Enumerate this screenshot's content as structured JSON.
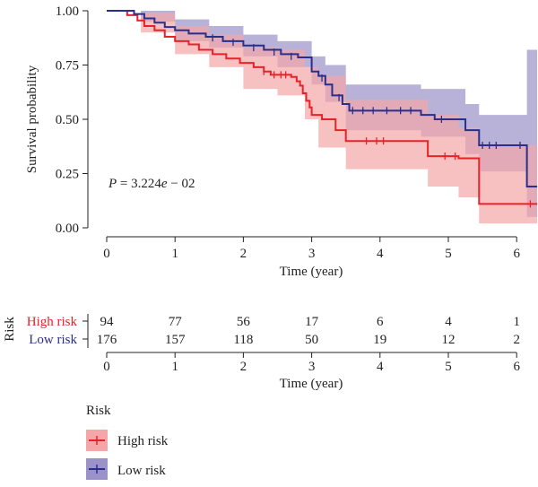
{
  "chart_data": [
    {
      "type": "line",
      "subtype": "kaplan-meier-survival",
      "xlabel": "Time (year)",
      "ylabel": "Survival probability",
      "xlim": [
        -0.1,
        6.3
      ],
      "ylim": [
        0,
        1
      ],
      "xticks": [
        "0",
        "1",
        "2",
        "3",
        "4",
        "5",
        "6"
      ],
      "yticks": [
        "0.00",
        "0.25",
        "0.50",
        "0.75",
        "1.00"
      ],
      "annotation": {
        "italic": "P",
        "rest": " = 3.224",
        "italic_e": "e",
        "tail": " − 02"
      },
      "grid": false,
      "confidence_bands": true,
      "series": [
        {
          "name": "High risk",
          "color": "#e8222a",
          "band_color": "#f4a6a8",
          "steps": [
            [
              0,
              1.0
            ],
            [
              0.3,
              0.98
            ],
            [
              0.45,
              0.955
            ],
            [
              0.55,
              0.93
            ],
            [
              0.7,
              0.91
            ],
            [
              0.85,
              0.88
            ],
            [
              1.0,
              0.86
            ],
            [
              1.2,
              0.845
            ],
            [
              1.35,
              0.82
            ],
            [
              1.55,
              0.8
            ],
            [
              1.75,
              0.78
            ],
            [
              1.95,
              0.76
            ],
            [
              2.15,
              0.74
            ],
            [
              2.3,
              0.72
            ],
            [
              2.4,
              0.705
            ],
            [
              2.7,
              0.695
            ],
            [
              2.78,
              0.675
            ],
            [
              2.83,
              0.655
            ],
            [
              2.87,
              0.62
            ],
            [
              2.92,
              0.585
            ],
            [
              2.97,
              0.555
            ],
            [
              3.0,
              0.52
            ],
            [
              3.15,
              0.5
            ],
            [
              3.35,
              0.45
            ],
            [
              3.5,
              0.4
            ],
            [
              4.7,
              0.33
            ],
            [
              5.15,
              0.32
            ],
            [
              5.45,
              0.11
            ],
            [
              6.3,
              0.11
            ]
          ],
          "lower": [
            [
              0,
              1.0
            ],
            [
              0.5,
              0.9
            ],
            [
              1.0,
              0.8
            ],
            [
              1.5,
              0.74
            ],
            [
              2.0,
              0.64
            ],
            [
              2.5,
              0.61
            ],
            [
              2.9,
              0.5
            ],
            [
              3.1,
              0.37
            ],
            [
              3.5,
              0.27
            ],
            [
              4.7,
              0.19
            ],
            [
              5.15,
              0.14
            ],
            [
              5.45,
              0.02
            ],
            [
              6.3,
              0.02
            ]
          ],
          "upper": [
            [
              0,
              1.0
            ],
            [
              0.5,
              0.99
            ],
            [
              1.0,
              0.93
            ],
            [
              1.5,
              0.89
            ],
            [
              2.0,
              0.83
            ],
            [
              2.5,
              0.82
            ],
            [
              2.9,
              0.74
            ],
            [
              3.1,
              0.7
            ],
            [
              3.5,
              0.59
            ],
            [
              4.7,
              0.52
            ],
            [
              5.15,
              0.46
            ],
            [
              5.45,
              0.38
            ],
            [
              6.3,
              0.38
            ]
          ],
          "censors": [
            [
              2.3,
              0.72
            ],
            [
              2.45,
              0.705
            ],
            [
              2.55,
              0.705
            ],
            [
              2.62,
              0.705
            ],
            [
              3.8,
              0.4
            ],
            [
              3.95,
              0.4
            ],
            [
              4.05,
              0.4
            ],
            [
              4.95,
              0.33
            ],
            [
              5.1,
              0.33
            ],
            [
              6.2,
              0.11
            ]
          ]
        },
        {
          "name": "Low risk",
          "color": "#2a2f8c",
          "band_color": "#9a92c9",
          "steps": [
            [
              0,
              1.0
            ],
            [
              0.4,
              0.985
            ],
            [
              0.55,
              0.965
            ],
            [
              0.7,
              0.945
            ],
            [
              0.85,
              0.925
            ],
            [
              1.0,
              0.91
            ],
            [
              1.2,
              0.895
            ],
            [
              1.45,
              0.88
            ],
            [
              1.7,
              0.86
            ],
            [
              2.0,
              0.84
            ],
            [
              2.3,
              0.82
            ],
            [
              2.55,
              0.8
            ],
            [
              2.8,
              0.785
            ],
            [
              3.0,
              0.72
            ],
            [
              3.1,
              0.7
            ],
            [
              3.2,
              0.66
            ],
            [
              3.3,
              0.61
            ],
            [
              3.45,
              0.57
            ],
            [
              3.55,
              0.54
            ],
            [
              4.6,
              0.52
            ],
            [
              4.8,
              0.5
            ],
            [
              5.25,
              0.45
            ],
            [
              5.45,
              0.38
            ],
            [
              6.0,
              0.38
            ],
            [
              6.15,
              0.19
            ],
            [
              6.3,
              0.19
            ]
          ],
          "lower": [
            [
              0,
              1.0
            ],
            [
              0.5,
              0.95
            ],
            [
              1.0,
              0.86
            ],
            [
              1.5,
              0.83
            ],
            [
              2.0,
              0.79
            ],
            [
              2.5,
              0.74
            ],
            [
              3.0,
              0.66
            ],
            [
              3.2,
              0.58
            ],
            [
              3.5,
              0.45
            ],
            [
              4.6,
              0.42
            ],
            [
              5.25,
              0.34
            ],
            [
              5.45,
              0.26
            ],
            [
              6.15,
              0.05
            ],
            [
              6.3,
              0.05
            ]
          ],
          "upper": [
            [
              0,
              1.0
            ],
            [
              0.5,
              1.0
            ],
            [
              1.0,
              0.96
            ],
            [
              1.5,
              0.93
            ],
            [
              2.0,
              0.89
            ],
            [
              2.5,
              0.86
            ],
            [
              3.0,
              0.79
            ],
            [
              3.2,
              0.75
            ],
            [
              3.5,
              0.66
            ],
            [
              4.6,
              0.64
            ],
            [
              5.25,
              0.57
            ],
            [
              5.45,
              0.52
            ],
            [
              6.15,
              0.52
            ],
            [
              6.15,
              0.82
            ],
            [
              6.3,
              0.82
            ]
          ],
          "censors": [
            [
              1.55,
              0.875
            ],
            [
              1.85,
              0.855
            ],
            [
              2.15,
              0.83
            ],
            [
              2.45,
              0.81
            ],
            [
              2.7,
              0.79
            ],
            [
              3.15,
              0.69
            ],
            [
              3.4,
              0.6
            ],
            [
              3.6,
              0.54
            ],
            [
              3.75,
              0.54
            ],
            [
              3.9,
              0.54
            ],
            [
              4.1,
              0.54
            ],
            [
              4.3,
              0.54
            ],
            [
              4.45,
              0.54
            ],
            [
              4.9,
              0.5
            ],
            [
              5.5,
              0.38
            ],
            [
              5.6,
              0.38
            ],
            [
              5.7,
              0.38
            ],
            [
              6.05,
              0.38
            ]
          ]
        }
      ]
    },
    {
      "type": "table",
      "title": "Risk",
      "xlabel": "Time (year)",
      "columns": [
        "0",
        "1",
        "2",
        "3",
        "4",
        "5",
        "6"
      ],
      "rows": [
        {
          "label": "High risk",
          "color": "#e8222a",
          "values": [
            "94",
            "77",
            "56",
            "17",
            "6",
            "4",
            "1"
          ]
        },
        {
          "label": "Low risk",
          "color": "#2a2f8c",
          "values": [
            "176",
            "157",
            "118",
            "50",
            "19",
            "12",
            "2"
          ]
        }
      ]
    }
  ],
  "legend": {
    "title": "Risk",
    "items": [
      {
        "label": "High risk",
        "color": "#e8222a",
        "band_color": "#f4a6a8"
      },
      {
        "label": "Low risk",
        "color": "#2a2f8c",
        "band_color": "#9a92c9"
      }
    ]
  }
}
